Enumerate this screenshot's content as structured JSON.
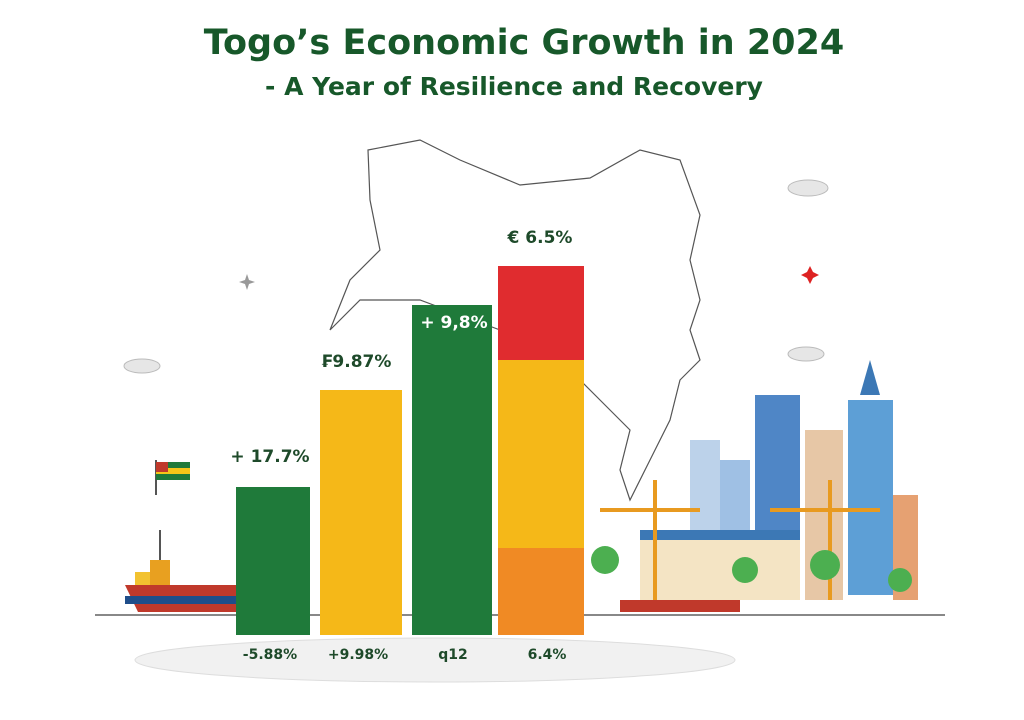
{
  "header": {
    "title": "Togo’s Economic Growth in 2024",
    "subtitle": "- A Year of Resilience and Recovery"
  },
  "bars": [
    {
      "top_label": "+ 17.7%",
      "bottom_label": "-5.88%"
    },
    {
      "top_label": "₣9.87%",
      "bottom_label": "+9.98%"
    },
    {
      "top_label": "+ 9,8%",
      "bottom_label": "q12"
    },
    {
      "top_label": "€ 6.5%",
      "bottom_label": "6.4%"
    }
  ]
}
